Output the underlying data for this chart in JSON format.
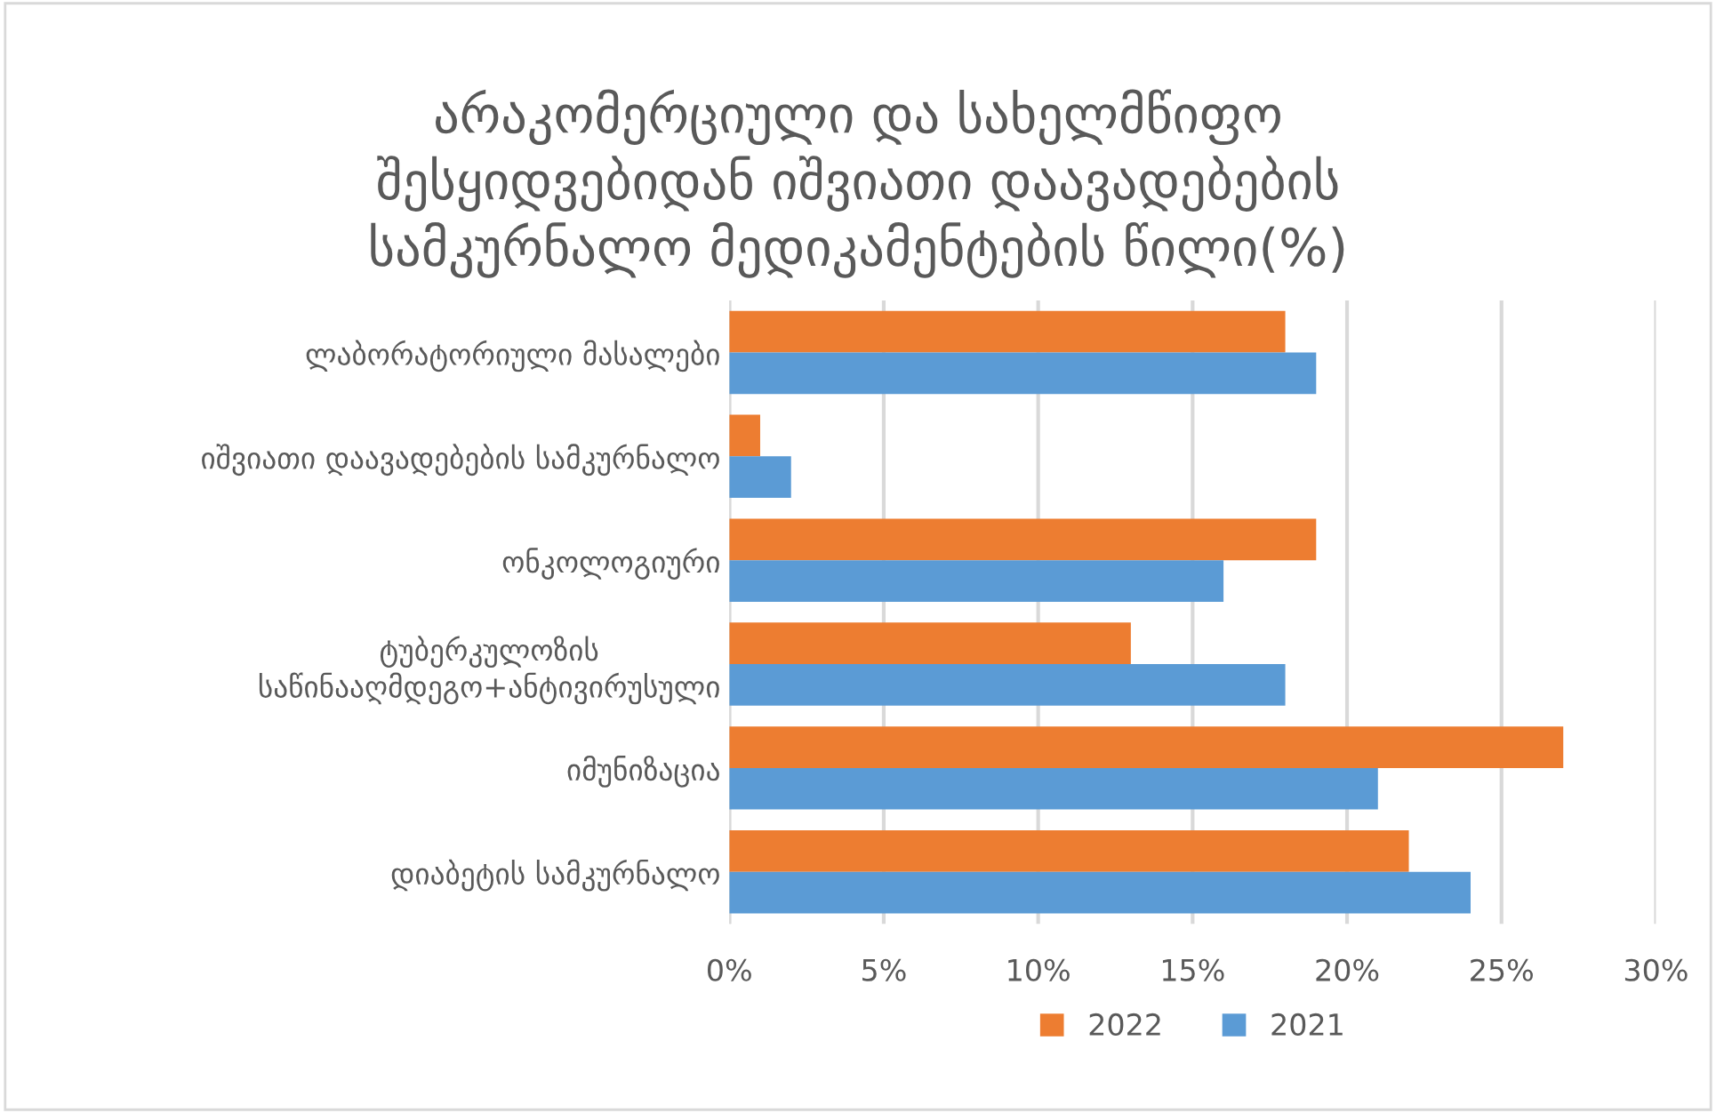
{
  "chart_data": {
    "type": "bar",
    "orientation": "horizontal",
    "title": "არაკომერციული და სახელმწიფო\nშესყიდვებიდან იშვიათი დაავადებების\nსამკურნალო მედიკამენტების წილი(%)",
    "categories": [
      "ლაბორატორიული მასალები",
      "იშვიათი დაავადებების სამკურნალო",
      "ონკოლოგიური",
      "ტუბერკულოზის\nსაწინააღმდეგო+ანტივირუსული",
      "იმუნიზაცია",
      "დიაბეტის სამკურნალო"
    ],
    "series": [
      {
        "name": "2022",
        "color": "#ed7d31",
        "values": [
          18,
          1,
          19,
          13,
          27,
          22
        ]
      },
      {
        "name": "2021",
        "color": "#5b9bd5",
        "values": [
          19,
          2,
          16,
          18,
          21,
          24
        ]
      }
    ],
    "xlim": [
      0,
      30
    ],
    "xticks": [
      {
        "value": 0,
        "label": "0%"
      },
      {
        "value": 5,
        "label": "5%"
      },
      {
        "value": 10,
        "label": "10%"
      },
      {
        "value": 15,
        "label": "15%"
      },
      {
        "value": 20,
        "label": "20%"
      },
      {
        "value": 25,
        "label": "25%"
      },
      {
        "value": 30,
        "label": "30%"
      }
    ],
    "grid": "x",
    "legend": "bottom"
  }
}
